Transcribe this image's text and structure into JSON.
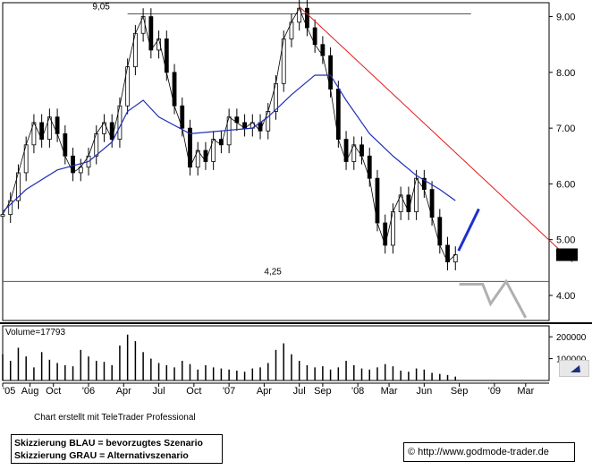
{
  "chart_data": {
    "type": "candlestick",
    "price_panel": {
      "y_ticks": [
        "9.00",
        "8.00",
        "7.00",
        "6.00",
        "5.00",
        "4.00"
      ],
      "ylim": [
        3.55,
        9.25
      ],
      "last_price_label": "4.73",
      "resistance_label": "9,05",
      "support_label": "4,25",
      "resistance_level": 9.05,
      "support_level": 4.25,
      "series": [
        {
          "role": "price",
          "points": [
            {
              "x": 0,
              "y": 5.45
            },
            {
              "x": 1,
              "y": 5.7
            },
            {
              "x": 2,
              "y": 6.2
            },
            {
              "x": 3,
              "y": 6.7
            },
            {
              "x": 4,
              "y": 7.1
            },
            {
              "x": 5,
              "y": 6.8
            },
            {
              "x": 6,
              "y": 7.2
            },
            {
              "x": 7,
              "y": 6.9
            },
            {
              "x": 8,
              "y": 6.5
            },
            {
              "x": 9,
              "y": 6.2
            },
            {
              "x": 10,
              "y": 6.3
            },
            {
              "x": 11,
              "y": 6.5
            },
            {
              "x": 12,
              "y": 6.9
            },
            {
              "x": 13,
              "y": 7.1
            },
            {
              "x": 14,
              "y": 6.8
            },
            {
              "x": 15,
              "y": 7.4
            },
            {
              "x": 16,
              "y": 8.1
            },
            {
              "x": 17,
              "y": 8.7
            },
            {
              "x": 18,
              "y": 9.0
            },
            {
              "x": 19,
              "y": 8.4
            },
            {
              "x": 20,
              "y": 8.6
            },
            {
              "x": 21,
              "y": 8.0
            },
            {
              "x": 22,
              "y": 7.4
            },
            {
              "x": 23,
              "y": 7.0
            },
            {
              "x": 24,
              "y": 6.3
            },
            {
              "x": 25,
              "y": 6.6
            },
            {
              "x": 26,
              "y": 6.4
            },
            {
              "x": 27,
              "y": 6.8
            },
            {
              "x": 28,
              "y": 6.7
            },
            {
              "x": 29,
              "y": 7.2
            },
            {
              "x": 30,
              "y": 7.1
            },
            {
              "x": 31,
              "y": 7.0
            },
            {
              "x": 32,
              "y": 7.1
            },
            {
              "x": 33,
              "y": 6.95
            },
            {
              "x": 34,
              "y": 7.3
            },
            {
              "x": 35,
              "y": 7.8
            },
            {
              "x": 36,
              "y": 8.6
            },
            {
              "x": 37,
              "y": 8.9
            },
            {
              "x": 38,
              "y": 9.15
            },
            {
              "x": 39,
              "y": 8.8
            },
            {
              "x": 40,
              "y": 8.5
            },
            {
              "x": 41,
              "y": 8.3
            },
            {
              "x": 42,
              "y": 7.7
            },
            {
              "x": 43,
              "y": 6.8
            },
            {
              "x": 44,
              "y": 6.4
            },
            {
              "x": 45,
              "y": 6.7
            },
            {
              "x": 46,
              "y": 6.5
            },
            {
              "x": 47,
              "y": 6.1
            },
            {
              "x": 48,
              "y": 5.3
            },
            {
              "x": 49,
              "y": 4.9
            },
            {
              "x": 50,
              "y": 5.5
            },
            {
              "x": 51,
              "y": 5.8
            },
            {
              "x": 52,
              "y": 5.5
            },
            {
              "x": 53,
              "y": 6.1
            },
            {
              "x": 54,
              "y": 5.9
            },
            {
              "x": 55,
              "y": 5.4
            },
            {
              "x": 56,
              "y": 4.9
            },
            {
              "x": 57,
              "y": 4.6
            },
            {
              "x": 58,
              "y": 4.73
            }
          ]
        },
        {
          "role": "moving-average",
          "points": [
            {
              "x": 0,
              "y": 5.5
            },
            {
              "x": 3,
              "y": 5.9
            },
            {
              "x": 7,
              "y": 6.25
            },
            {
              "x": 11,
              "y": 6.4
            },
            {
              "x": 14,
              "y": 6.75
            },
            {
              "x": 16,
              "y": 7.3
            },
            {
              "x": 18,
              "y": 7.5
            },
            {
              "x": 20,
              "y": 7.2
            },
            {
              "x": 24,
              "y": 6.9
            },
            {
              "x": 28,
              "y": 6.95
            },
            {
              "x": 32,
              "y": 7.0
            },
            {
              "x": 34,
              "y": 7.2
            },
            {
              "x": 37,
              "y": 7.6
            },
            {
              "x": 40,
              "y": 7.95
            },
            {
              "x": 42,
              "y": 7.95
            },
            {
              "x": 44,
              "y": 7.5
            },
            {
              "x": 47,
              "y": 6.9
            },
            {
              "x": 50,
              "y": 6.5
            },
            {
              "x": 53,
              "y": 6.15
            },
            {
              "x": 56,
              "y": 5.9
            },
            {
              "x": 58,
              "y": 5.7
            }
          ]
        }
      ],
      "trendline": {
        "from": {
          "x": 38,
          "y": 9.18
        },
        "to": {
          "x": 73,
          "y": 4.6
        }
      },
      "scenario_blue": [
        {
          "x": 58.4,
          "y": 4.8
        },
        {
          "x": 61.0,
          "y": 5.55
        }
      ],
      "scenario_gray": [
        {
          "x": 58.5,
          "y": 4.2
        },
        {
          "x": 61.5,
          "y": 4.2
        },
        {
          "x": 62.5,
          "y": 3.85
        },
        {
          "x": 64.5,
          "y": 4.25
        },
        {
          "x": 67.0,
          "y": 3.6
        }
      ]
    },
    "volume_panel": {
      "label": "Volume=17793",
      "y_ticks": [
        "200000",
        "100000"
      ],
      "ylim": [
        0,
        250000
      ],
      "values": [
        120000,
        90000,
        150000,
        110000,
        60000,
        130000,
        95000,
        80000,
        70000,
        65000,
        140000,
        110000,
        90000,
        85000,
        70000,
        160000,
        210000,
        180000,
        130000,
        100000,
        80000,
        70000,
        60000,
        90000,
        75000,
        50000,
        70000,
        60000,
        55000,
        50000,
        45000,
        40000,
        55000,
        60000,
        80000,
        140000,
        170000,
        120000,
        90000,
        70000,
        60000,
        65000,
        50000,
        60000,
        90000,
        70000,
        55000,
        50000,
        60000,
        75000,
        65000,
        45000,
        40000,
        55000,
        50000,
        35000,
        30000,
        25000,
        17793
      ]
    },
    "x_axis": {
      "ticks": [
        {
          "label": "'05",
          "x": 0
        },
        {
          "label": "Aug",
          "x": 3.5
        },
        {
          "label": "Oct",
          "x": 6.5
        },
        {
          "label": "'06",
          "x": 11
        },
        {
          "label": "Apr",
          "x": 15.5
        },
        {
          "label": "Jul",
          "x": 20
        },
        {
          "label": "Oct",
          "x": 24.5
        },
        {
          "label": "'07",
          "x": 29
        },
        {
          "label": "Apr",
          "x": 33.5
        },
        {
          "label": "Jul",
          "x": 38
        },
        {
          "label": "Sep",
          "x": 41
        },
        {
          "label": "'08",
          "x": 45.5
        },
        {
          "label": "Mar",
          "x": 49.5
        },
        {
          "label": "Jun",
          "x": 54
        },
        {
          "label": "Sep",
          "x": 58.5
        },
        {
          "label": "'09",
          "x": 63
        },
        {
          "label": "Mar",
          "x": 67
        }
      ],
      "xlim": [
        0,
        70
      ]
    }
  },
  "footer": {
    "credit": "Chart erstellt mit TeleTrader Professional",
    "legend_line1": "Skizzierung BLAU = bevorzugtes Szenario",
    "legend_line2": "Skizzierung GRAU = Alternativszenario",
    "copyright_symbol": "©",
    "url": "http://www.godmode-trader.de"
  },
  "colors": {
    "price": "#000000",
    "moving_average": "#1f2fb5",
    "trendline": "#e11b1b",
    "scenario_blue": "#1d2fd0",
    "scenario_gray": "#b0b0b0",
    "support_resistance": "#555555",
    "last_price_bg": "#000000",
    "last_price_text": "#ffffff"
  }
}
